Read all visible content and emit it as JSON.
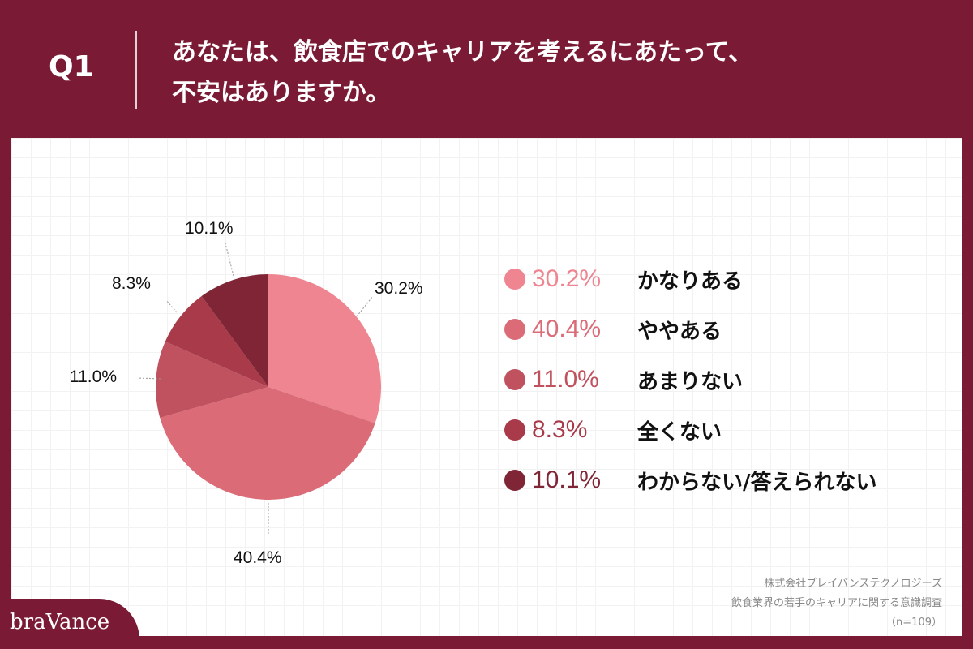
{
  "header": {
    "q": "Q1",
    "title_line1": "あなたは、飲食店でのキャリアを考えるにあたって、",
    "title_line2": "不安はありますか。"
  },
  "chart_data": {
    "type": "pie",
    "title": "あなたは、飲食店でのキャリアを考えるにあたって、不安はありますか。",
    "categories": [
      "かなりある",
      "ややある",
      "あまりない",
      "全くない",
      "わからない/答えられない"
    ],
    "values": [
      30.2,
      40.4,
      11.0,
      8.3,
      10.1
    ],
    "labels": [
      "30.2%",
      "40.4%",
      "11.0%",
      "8.3%",
      "10.1%"
    ],
    "colors": [
      "#ee8590",
      "#da6b77",
      "#c0515e",
      "#a83a4a",
      "#7f2535"
    ],
    "legend_position": "right"
  },
  "footer": {
    "company": "株式会社ブレイバンステクノロジーズ",
    "survey": "飲食業界の若手のキャリアに関する意識調査",
    "n": "（n=109）",
    "logo": "braVance"
  }
}
